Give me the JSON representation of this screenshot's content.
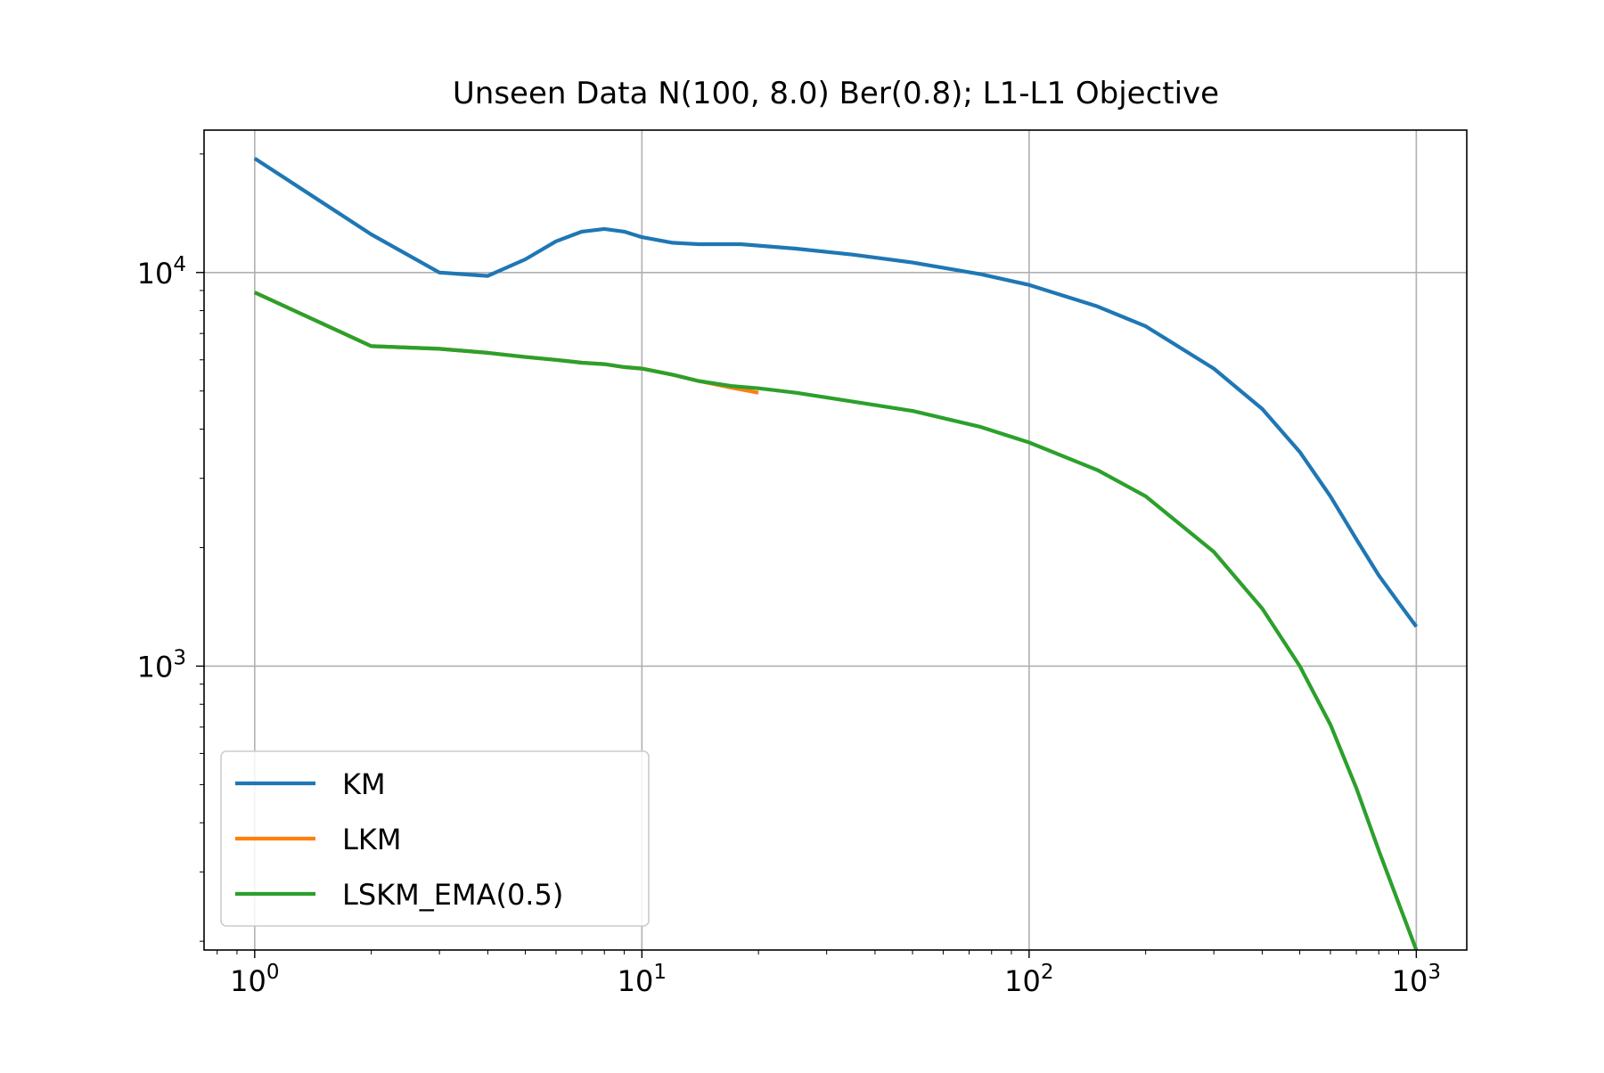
{
  "chart_data": {
    "type": "line",
    "title": "Unseen Data N(100, 8.0) Ber(0.8); L1-L1 Objective",
    "xlabel": "",
    "ylabel": "",
    "xscale": "log",
    "yscale": "log",
    "xlim": [
      0.74,
      1350
    ],
    "ylim": [
      190,
      23000
    ],
    "grid": true,
    "legend_position": "lower-left",
    "x_ticks": [
      {
        "base": "10",
        "exp": "0",
        "value": 1
      },
      {
        "base": "10",
        "exp": "1",
        "value": 10
      },
      {
        "base": "10",
        "exp": "2",
        "value": 100
      },
      {
        "base": "10",
        "exp": "3",
        "value": 1000
      }
    ],
    "y_ticks": [
      {
        "base": "10",
        "exp": "3",
        "value": 1000
      },
      {
        "base": "10",
        "exp": "4",
        "value": 10000
      }
    ],
    "series": [
      {
        "name": "KM",
        "color": "#1f77b4",
        "x": [
          1,
          2,
          3,
          4,
          5,
          6,
          7,
          8,
          9,
          10,
          12,
          14,
          18,
          25,
          35,
          50,
          75,
          100,
          150,
          200,
          300,
          400,
          500,
          600,
          700,
          800,
          900,
          1000
        ],
        "y": [
          19500,
          12500,
          10000,
          9800,
          10800,
          12000,
          12700,
          12900,
          12700,
          12300,
          11900,
          11800,
          11800,
          11500,
          11100,
          10600,
          9900,
          9300,
          8200,
          7300,
          5700,
          4500,
          3500,
          2700,
          2100,
          1700,
          1450,
          1260
        ]
      },
      {
        "name": "LKM",
        "color": "#ff7f0e",
        "x": [
          1,
          2,
          3,
          4,
          5,
          6,
          7,
          8,
          9,
          10,
          12,
          14,
          17,
          20
        ],
        "y": [
          8900,
          6500,
          6400,
          6250,
          6100,
          6000,
          5900,
          5850,
          5750,
          5700,
          5500,
          5300,
          5100,
          4950
        ]
      },
      {
        "name": "LSKM_EMA(0.5)",
        "color": "#2ca02c",
        "x": [
          1,
          2,
          3,
          4,
          5,
          6,
          7,
          8,
          9,
          10,
          12,
          14,
          17,
          20,
          25,
          35,
          50,
          75,
          100,
          150,
          200,
          300,
          400,
          500,
          600,
          700,
          800,
          900,
          1000
        ],
        "y": [
          8900,
          6500,
          6400,
          6250,
          6100,
          6000,
          5900,
          5850,
          5750,
          5700,
          5500,
          5300,
          5150,
          5080,
          4950,
          4700,
          4450,
          4050,
          3700,
          3150,
          2700,
          1950,
          1400,
          1000,
          710,
          490,
          340,
          250,
          190
        ]
      }
    ]
  }
}
